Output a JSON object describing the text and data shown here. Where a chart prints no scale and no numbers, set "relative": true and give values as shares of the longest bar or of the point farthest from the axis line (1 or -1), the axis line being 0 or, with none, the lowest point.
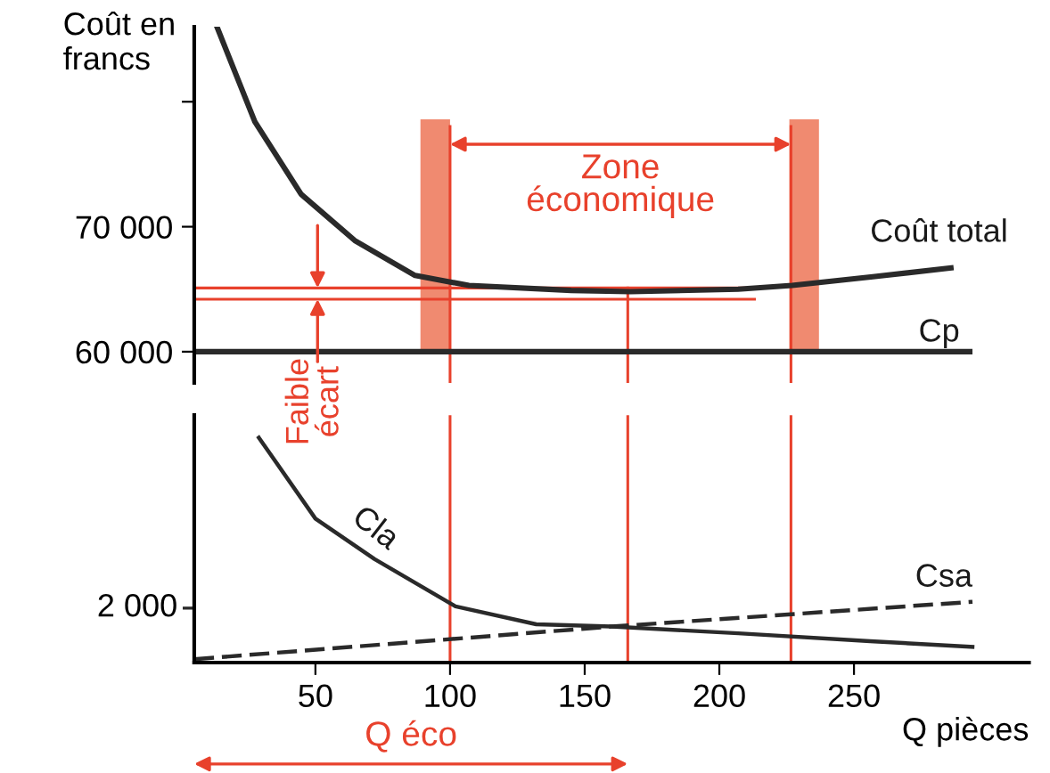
{
  "chart_data": [
    {
      "type": "line",
      "ylabel": "Coût en francs",
      "xlim": [
        5,
        294
      ],
      "xticks": [
        50,
        100,
        150,
        200,
        250
      ],
      "ylim": [
        57500,
        86000
      ],
      "yticks": [
        {
          "value": 60000,
          "label": "60 000"
        },
        {
          "value": 70000,
          "label": "70 000"
        },
        {
          "value": 80000,
          "label": null
        }
      ],
      "tick_labels": "y",
      "series": [
        {
          "name": "Coût total",
          "color": "#2a2a2a",
          "line_style": "solid",
          "x": [
            13.6,
            27.5,
            44.7,
            64.6,
            87,
            107,
            145,
            167,
            207,
            227,
            257,
            286
          ],
          "values": [
            85900,
            78400,
            72600,
            68900,
            66100,
            65300,
            64900,
            64800,
            65000,
            65300,
            66000,
            66700
          ]
        },
        {
          "name": "Cp",
          "color": "#2a2a2a",
          "line_style": "solid",
          "x": [
            5,
            294
          ],
          "values": [
            60000,
            60000
          ]
        }
      ],
      "bands": [
        {
          "axis": "x",
          "from": 89,
          "to": 100,
          "color": "#f08a70"
        },
        {
          "axis": "x",
          "from": 226,
          "to": 237,
          "color": "#f08a70"
        }
      ],
      "ref_lines": [
        {
          "axis": "y",
          "value": 65100,
          "color": "#e8412c"
        },
        {
          "axis": "y",
          "value": 64200,
          "color": "#e8412c"
        },
        {
          "axis": "x",
          "value": 100,
          "color": "#e8412c"
        },
        {
          "axis": "x",
          "value": 226.6,
          "color": "#e8412c"
        },
        {
          "axis": "x",
          "value": 166,
          "color": "#e8412c"
        }
      ],
      "annotations": [
        "Zone\néconomique",
        {
          "text": "Faible\nécart",
          "x": 50.8,
          "y": 64650
        }
      ]
    },
    {
      "type": "line",
      "relative": true,
      "xlabel": "Q pièces",
      "xlim": [
        5,
        315
      ],
      "xticks": [
        50,
        100,
        150,
        200,
        250
      ],
      "tick_labels": "x",
      "series": [
        {
          "name": "Cla",
          "color": "#2a2a2a",
          "line_style": "solid",
          "x": [
            29,
            50,
            72,
            102,
            132,
            160,
            207,
            256,
            294
          ],
          "values": [
            1.0,
            0.64,
            0.46,
            0.25,
            0.17,
            0.16,
            0.13,
            0.095,
            0.07
          ]
        },
        {
          "name": "Csa",
          "color": "#2a2a2a",
          "line_style": "dashed",
          "x": [
            5,
            160,
            294
          ],
          "values": [
            0.015,
            0.16,
            0.27
          ]
        }
      ],
      "ref_lines": [
        {
          "axis": "x",
          "value": 100,
          "color": "#e8412c"
        },
        {
          "axis": "x",
          "value": 226.6,
          "color": "#e8412c"
        },
        {
          "axis": "x",
          "value": 166,
          "color": "#e8412c"
        }
      ],
      "annotations": [
        "2 000",
        "Q éco"
      ]
    }
  ]
}
